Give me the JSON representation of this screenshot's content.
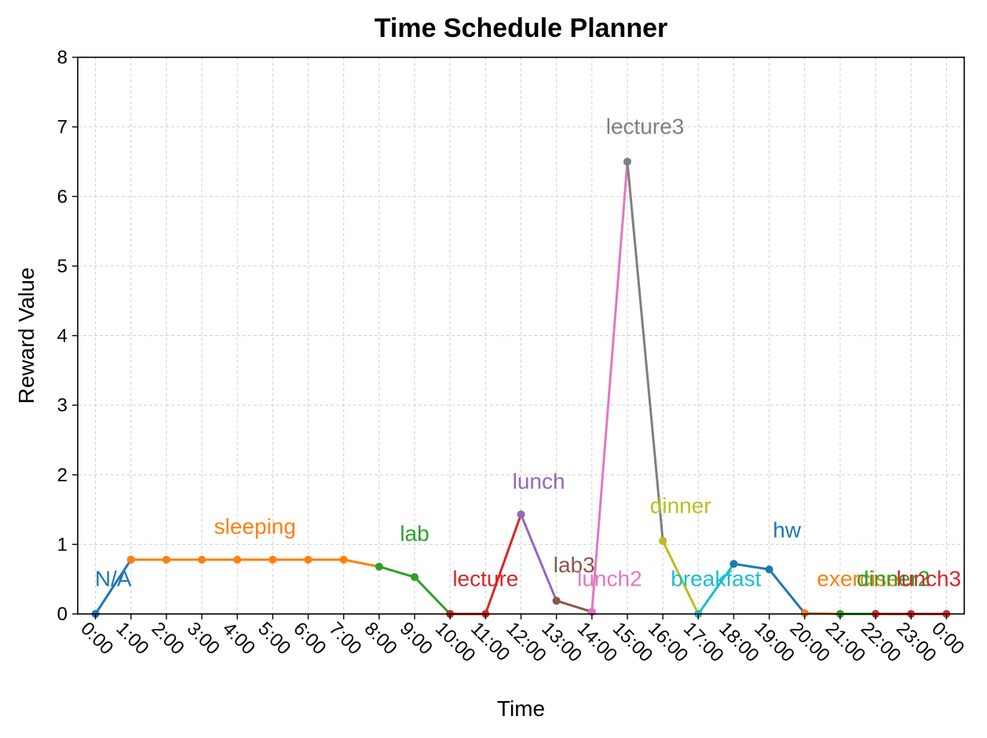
{
  "chart_data": {
    "type": "line",
    "title": "Time Schedule Planner",
    "xlabel": "Time",
    "ylabel": "Reward Value",
    "ylim": [
      0,
      8
    ],
    "yticks": [
      "0",
      "1",
      "2",
      "3",
      "4",
      "5",
      "6",
      "7",
      "8"
    ],
    "xticks": [
      "0:00",
      "1:00",
      "2:00",
      "3:00",
      "4:00",
      "5:00",
      "6:00",
      "7:00",
      "8:00",
      "9:00",
      "10:00",
      "11:00",
      "12:00",
      "13:00",
      "14:00",
      "15:00",
      "16:00",
      "17:00",
      "18:00",
      "19:00",
      "20:00",
      "21:00",
      "22:00",
      "23:00",
      "0:00"
    ],
    "grid": true,
    "series": [
      {
        "name": "N/A",
        "color": "#1f77b4",
        "x": [
          0,
          1
        ],
        "y": [
          0,
          0.78
        ]
      },
      {
        "name": "sleeping",
        "color": "#ff7f0e",
        "x": [
          1,
          2,
          3,
          4,
          5,
          6,
          7,
          8
        ],
        "y": [
          0.78,
          0.78,
          0.78,
          0.78,
          0.78,
          0.78,
          0.78,
          0.68
        ]
      },
      {
        "name": "lab",
        "color": "#2ca02c",
        "x": [
          8,
          9,
          10
        ],
        "y": [
          0.68,
          0.53,
          0
        ]
      },
      {
        "name": "lecture",
        "color": "#d62728",
        "x": [
          10,
          11,
          12
        ],
        "y": [
          0,
          0,
          1.43
        ]
      },
      {
        "name": "lunch",
        "color": "#9467bd",
        "x": [
          12,
          13
        ],
        "y": [
          1.43,
          0.19
        ]
      },
      {
        "name": "lab3",
        "color": "#8c564b",
        "x": [
          13,
          14
        ],
        "y": [
          0.19,
          0.03
        ]
      },
      {
        "name": "lunch2",
        "color": "#e377c2",
        "x": [
          14,
          15
        ],
        "y": [
          0.03,
          6.5
        ]
      },
      {
        "name": "lecture3",
        "color": "#7f7f7f",
        "x": [
          15,
          16
        ],
        "y": [
          6.5,
          1.05
        ]
      },
      {
        "name": "dinner",
        "color": "#bcbd22",
        "x": [
          16,
          17
        ],
        "y": [
          1.05,
          0
        ]
      },
      {
        "name": "breakfast",
        "color": "#17becf",
        "x": [
          17,
          18
        ],
        "y": [
          0,
          0.72
        ]
      },
      {
        "name": "hw",
        "color": "#1f77b4",
        "x": [
          18,
          19,
          20
        ],
        "y": [
          0.72,
          0.64,
          0.01
        ]
      },
      {
        "name": "exercise",
        "color": "#ff7f0e",
        "x": [
          20,
          21
        ],
        "y": [
          0.01,
          0
        ]
      },
      {
        "name": "dinner2",
        "color": "#2ca02c",
        "x": [
          21,
          22
        ],
        "y": [
          0,
          0
        ]
      },
      {
        "name": "lunch3",
        "color": "#d62728",
        "x": [
          22,
          23,
          24
        ],
        "y": [
          0,
          0,
          0
        ]
      }
    ],
    "annotations": [
      {
        "text": "N/A",
        "color": "#1f77b4",
        "x": 0.5,
        "y": 0.4
      },
      {
        "text": "sleeping",
        "color": "#ff7f0e",
        "x": 4.5,
        "y": 1.15
      },
      {
        "text": "lab",
        "color": "#2ca02c",
        "x": 9.0,
        "y": 1.05
      },
      {
        "text": "lecture",
        "color": "#d62728",
        "x": 11.0,
        "y": 0.4
      },
      {
        "text": "lunch",
        "color": "#9467bd",
        "x": 12.5,
        "y": 1.8
      },
      {
        "text": "lab3",
        "color": "#8c564b",
        "x": 13.5,
        "y": 0.6
      },
      {
        "text": "lunch2",
        "color": "#e377c2",
        "x": 14.5,
        "y": 0.4
      },
      {
        "text": "lecture3",
        "color": "#7f7f7f",
        "x": 15.5,
        "y": 6.9
      },
      {
        "text": "dinner",
        "color": "#bcbd22",
        "x": 16.5,
        "y": 1.45
      },
      {
        "text": "breakfast",
        "color": "#17becf",
        "x": 17.5,
        "y": 0.4
      },
      {
        "text": "hw",
        "color": "#1f77b4",
        "x": 19.5,
        "y": 1.1
      },
      {
        "text": "exercise",
        "color": "#ff7f0e",
        "x": 21.5,
        "y": 0.4
      },
      {
        "text": "dinner2",
        "color": "#2ca02c",
        "x": 22.5,
        "y": 0.4
      },
      {
        "text": "lunch3",
        "color": "#d62728",
        "x": 23.5,
        "y": 0.4
      }
    ]
  }
}
